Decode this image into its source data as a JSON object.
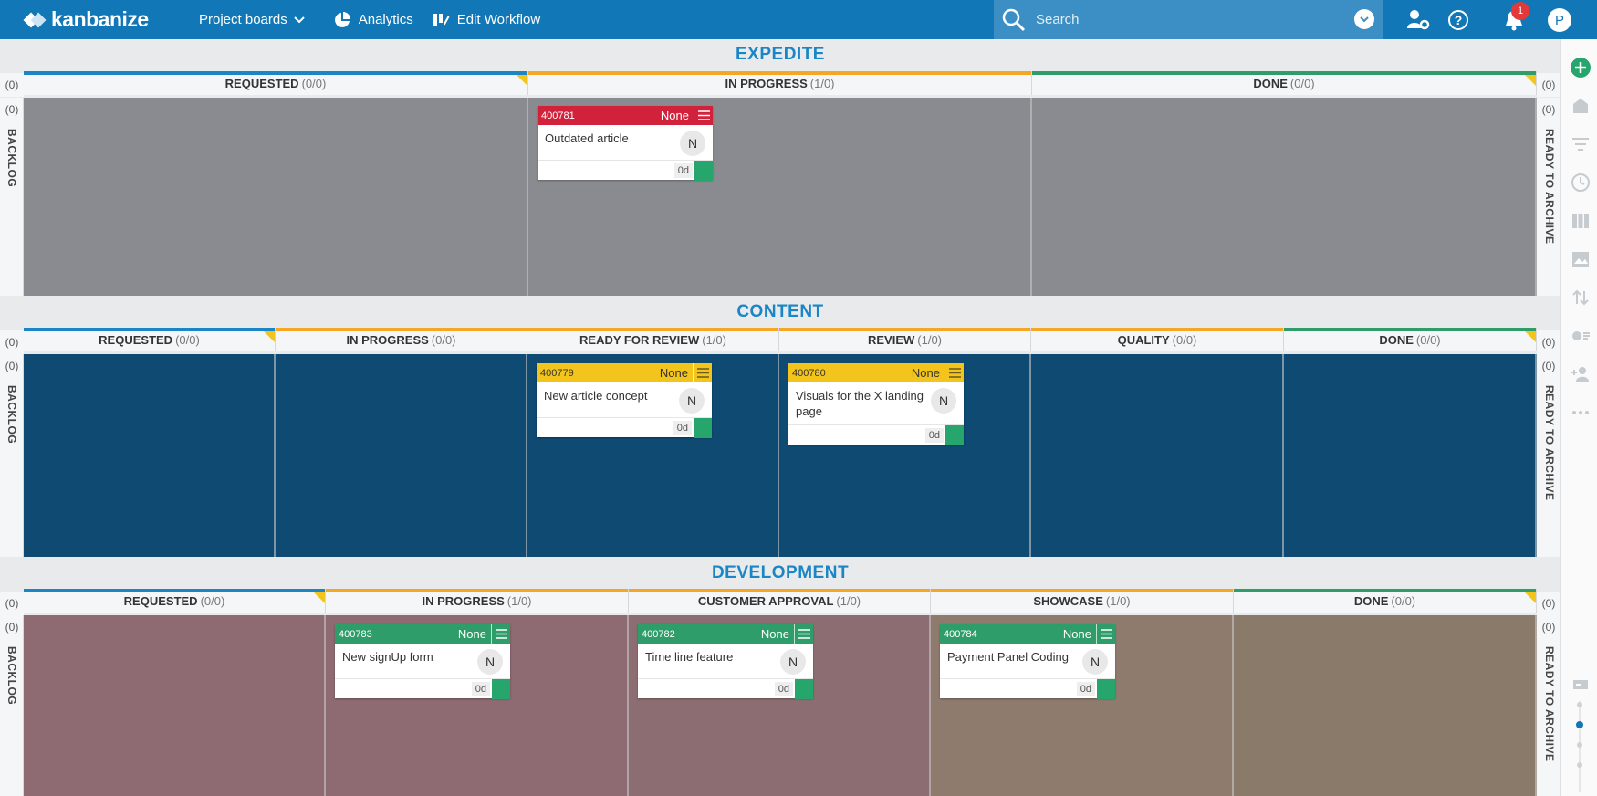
{
  "app": {
    "logo_text": "kanbanize",
    "nav": {
      "projects": "Project boards",
      "analytics": "Analytics",
      "workflow": "Edit Workflow"
    },
    "search_placeholder": "Search",
    "notifications_count": "1",
    "user_initial": "P"
  },
  "lanes": {
    "expedite": {
      "title": "EXPEDITE",
      "side_count": "(0)",
      "backlog_label": "BACKLOG",
      "archive_label": "READY TO ARCHIVE",
      "columns": [
        {
          "name": "REQUESTED",
          "count": "(0/0)"
        },
        {
          "name": "IN PROGRESS",
          "count": "(1/0)"
        },
        {
          "name": "DONE",
          "count": "(0/0)"
        }
      ],
      "cards": [
        {
          "id": "400781",
          "priority": "None",
          "title": "Outdated article",
          "avatar": "N",
          "age": "0d"
        }
      ]
    },
    "content": {
      "title": "CONTENT",
      "side_count": "(0)",
      "backlog_label": "BACKLOG",
      "archive_label": "READY TO ARCHIVE",
      "columns": [
        {
          "name": "REQUESTED",
          "count": "(0/0)"
        },
        {
          "name": "IN PROGRESS",
          "count": "(0/0)"
        },
        {
          "name": "READY FOR REVIEW",
          "count": "(1/0)"
        },
        {
          "name": "REVIEW",
          "count": "(1/0)"
        },
        {
          "name": "QUALITY",
          "count": "(0/0)"
        },
        {
          "name": "DONE",
          "count": "(0/0)"
        }
      ],
      "cards": [
        {
          "id": "400779",
          "priority": "None",
          "title": "New article concept",
          "avatar": "N",
          "age": "0d"
        },
        {
          "id": "400780",
          "priority": "None",
          "title": "Visuals for the X landing page",
          "avatar": "N",
          "age": "0d"
        }
      ]
    },
    "development": {
      "title": "DEVELOPMENT",
      "side_count": "(0)",
      "backlog_label": "BACKLOG",
      "archive_label": "READY TO ARCHIVE",
      "columns": [
        {
          "name": "REQUESTED",
          "count": "(0/0)"
        },
        {
          "name": "IN PROGRESS",
          "count": "(1/0)"
        },
        {
          "name": "CUSTOMER APPROVAL",
          "count": "(1/0)"
        },
        {
          "name": "SHOWCASE",
          "count": "(1/0)"
        },
        {
          "name": "DONE",
          "count": "(0/0)"
        }
      ],
      "cards": [
        {
          "id": "400783",
          "priority": "None",
          "title": "New signUp form",
          "avatar": "N",
          "age": "0d"
        },
        {
          "id": "400782",
          "priority": "None",
          "title": "Time line feature",
          "avatar": "N",
          "age": "0d"
        },
        {
          "id": "400784",
          "priority": "None",
          "title": "Payment Panel Coding",
          "avatar": "N",
          "age": "0d"
        }
      ]
    }
  },
  "colors": {
    "topbar": "#1177b6",
    "expedite_bg": "#8a8b90",
    "content_bg": "#0e4a72",
    "development_bg": "#8e6a72",
    "card_red": "#d2213a",
    "card_yellow": "#f3c41b",
    "card_green": "#2f9d6a",
    "status_green": "#26a56c"
  }
}
